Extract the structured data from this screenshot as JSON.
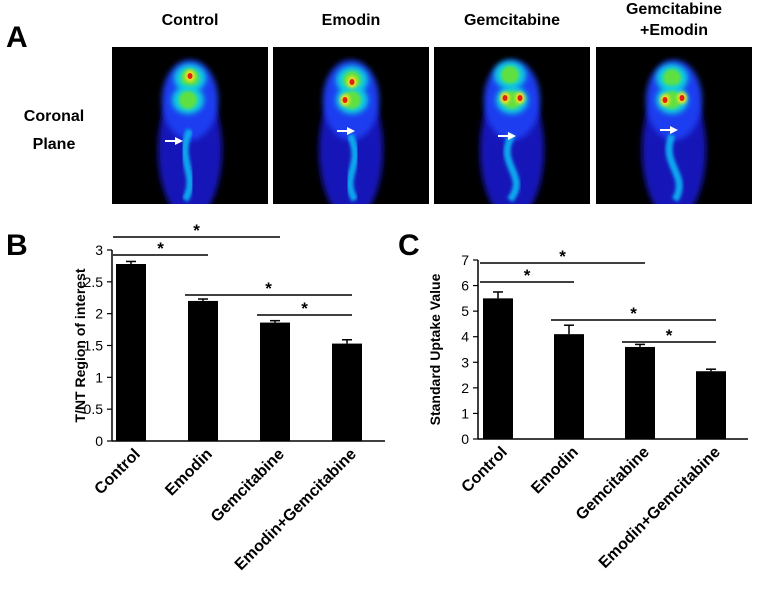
{
  "panel_a": {
    "label": "A",
    "row_label": [
      "Coronal",
      "Plane"
    ],
    "columns": [
      [
        "Control"
      ],
      [
        "Emodin"
      ],
      [
        "Gemcitabine"
      ],
      [
        "Gemcitabine",
        "+Emodin"
      ]
    ]
  },
  "chart_data": [
    {
      "type": "bar",
      "panel_label": "B",
      "y_label": "T/NT Region of interest",
      "categories": [
        "Control",
        "Emodin",
        "Gemcitabine",
        "Emodin+Gemcitabine"
      ],
      "values": [
        2.78,
        2.2,
        1.86,
        1.53
      ],
      "errors": [
        0.04,
        0.03,
        0.03,
        0.06
      ],
      "color": "#000000",
      "ylim": [
        0,
        3
      ],
      "yticks": [
        0,
        0.5,
        1,
        1.5,
        2,
        2.5,
        3
      ],
      "grid": false,
      "significance": [
        {
          "from": 0,
          "to": 1,
          "label": "*"
        },
        {
          "from": 0,
          "to": 2,
          "label": "*"
        },
        {
          "from": 1,
          "to": 3,
          "label": "*"
        },
        {
          "from": 2,
          "to": 3,
          "label": "*"
        }
      ]
    },
    {
      "type": "bar",
      "panel_label": "C",
      "y_label": "Standard Uptake Value",
      "categories": [
        "Control",
        "Emodin",
        "Gemcitabine",
        "Emodin+Gemcitabine"
      ],
      "values": [
        5.5,
        4.1,
        3.6,
        2.65
      ],
      "errors": [
        0.25,
        0.35,
        0.1,
        0.08
      ],
      "color": "#000000",
      "ylim": [
        0,
        7
      ],
      "yticks": [
        0,
        1,
        2,
        3,
        4,
        5,
        6,
        7
      ],
      "grid": false,
      "significance": [
        {
          "from": 0,
          "to": 1,
          "label": "*"
        },
        {
          "from": 0,
          "to": 2,
          "label": "*"
        },
        {
          "from": 1,
          "to": 3,
          "label": "*"
        },
        {
          "from": 2,
          "to": 3,
          "label": "*"
        }
      ]
    }
  ]
}
